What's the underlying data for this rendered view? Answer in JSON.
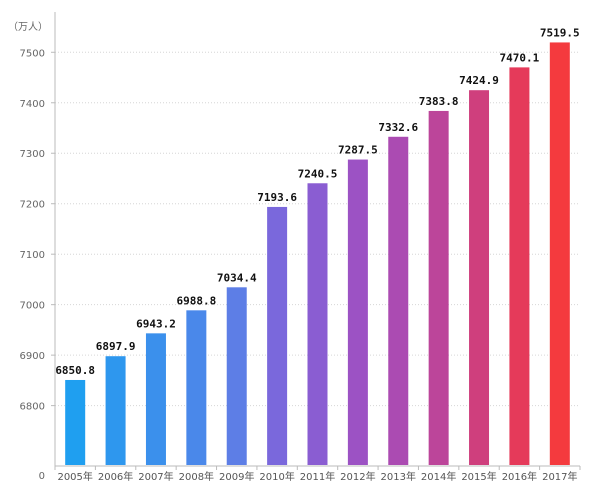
{
  "chart_data": {
    "type": "bar",
    "unit": "（万人）",
    "categories": [
      "2005年",
      "2006年",
      "2007年",
      "2008年",
      "2009年",
      "2010年",
      "2011年",
      "2012年",
      "2013年",
      "2014年",
      "2015年",
      "2016年",
      "2017年"
    ],
    "values": [
      6850.8,
      6897.9,
      6943.2,
      6988.8,
      7034.4,
      7193.6,
      7240.5,
      7287.5,
      7332.6,
      7383.8,
      7424.9,
      7470.1,
      7519.5
    ],
    "value_labels": [
      "6850.8",
      "6897.9",
      "6943.2",
      "6988.8",
      "7034.4",
      "7193.6",
      "7240.5",
      "7287.5",
      "7332.6",
      "7383.8",
      "7424.9",
      "7470.1",
      "7519.5"
    ],
    "yticks": [
      6800,
      6900,
      7000,
      7100,
      7200,
      7300,
      7400,
      7500
    ],
    "baseline_label": "0",
    "ylim": [
      6720,
      7560
    ],
    "axis_break": true,
    "grid": "horizontal-dotted",
    "colors": [
      "#1f9ff0",
      "#2e97ee",
      "#3b90ec",
      "#4a88ea",
      "#5d7ee6",
      "#7a68dc",
      "#8a5dd2",
      "#9c52c4",
      "#ab4bb2",
      "#bc459a",
      "#cf3f7d",
      "#e53a5a",
      "#f43a3e"
    ],
    "title": "",
    "xlabel": "",
    "ylabel": ""
  }
}
